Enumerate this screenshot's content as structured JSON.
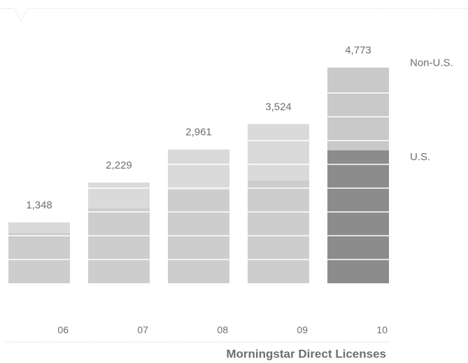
{
  "chart_data": {
    "type": "stacked_bar",
    "x_label": "Morningstar Direct Licenses",
    "categories": [
      "06",
      "07",
      "08",
      "09",
      "10"
    ],
    "series": [
      {
        "name": "U.S.",
        "color": "#8c8c8c",
        "muted_color": "#cdcdcd",
        "values": [
          1116,
          1658,
          2061,
          2278,
          2944
        ]
      },
      {
        "name": "Non-U.S.",
        "color": "#c9c9c9",
        "muted_color": "#dadada",
        "values": [
          232,
          571,
          900,
          1246,
          1829
        ]
      }
    ],
    "totals": [
      1348,
      2229,
      2961,
      3524,
      4773
    ],
    "totals_labels": [
      "1,348",
      "2,229",
      "2,961",
      "3,524",
      "4,773"
    ],
    "highlight": "10",
    "ylim": [
      0,
      5000
    ]
  }
}
